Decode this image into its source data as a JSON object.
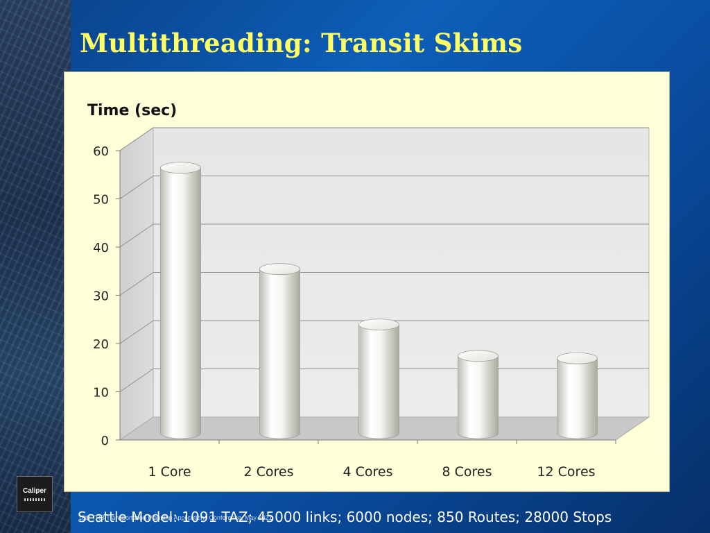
{
  "slide": {
    "title": "Multithreading: Transit Skims",
    "footer": "Seattle Model: 1091 TAZ; 45000 links; 6000 nodes; 850 Routes; 28000 Stops",
    "footer_small": "18th TRB Transportation Planning Applications Conference, May 2021",
    "logo_text": "Caliper"
  },
  "colors": {
    "background": "#0d5fb8",
    "title": "#ffff66",
    "panel": "#ffffd9"
  },
  "chart_data": {
    "type": "bar",
    "title": "",
    "xlabel": "",
    "ylabel": "Time (sec)",
    "categories": [
      "1 Core",
      "2 Cores",
      "4 Cores",
      "8 Cores",
      "12 Cores"
    ],
    "values": [
      55,
      34,
      22.5,
      16,
      15.5
    ],
    "ylim": [
      0,
      60
    ],
    "yticks": [
      "0",
      "10",
      "20",
      "30",
      "40",
      "50",
      "60"
    ],
    "grid": true,
    "style": "3d-cylinder"
  }
}
